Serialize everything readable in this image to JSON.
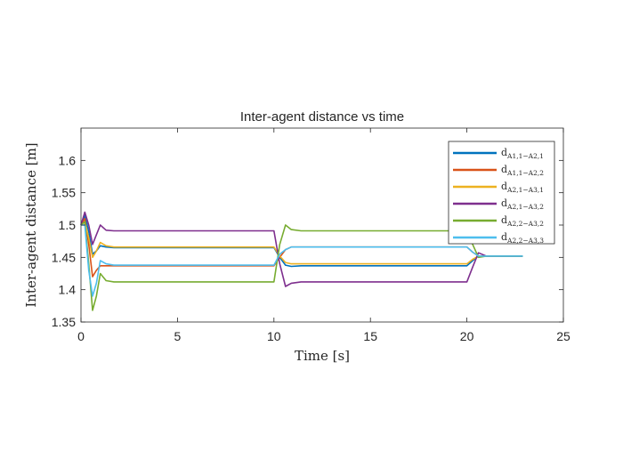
{
  "chart_data": {
    "type": "line",
    "title": "Inter-agent distance vs time",
    "xlabel": "Time [s]",
    "ylabel": "Inter-agent distance [m]",
    "xlim": [
      0,
      25
    ],
    "ylim": [
      1.35,
      1.65
    ],
    "xticks": [
      0,
      5,
      10,
      15,
      20,
      25
    ],
    "xtick_labels": [
      "0",
      "5",
      "10",
      "15",
      "20",
      "25"
    ],
    "yticks": [
      1.35,
      1.4,
      1.45,
      1.5,
      1.55,
      1.6
    ],
    "ytick_labels": [
      "1.35",
      "1.4",
      "1.45",
      "1.5",
      "1.55",
      "1.6"
    ],
    "grid": false,
    "legend_position": "top-right",
    "series": [
      {
        "name": "d_{A_{1,1}-A_{2,1}}",
        "legend_main": "d",
        "legend_sub": "A1,1−A2,1",
        "color": "#0072BD",
        "x": [
          0,
          0.2,
          0.4,
          0.6,
          0.8,
          1.0,
          1.3,
          1.7,
          10.0,
          10.3,
          10.6,
          10.9,
          11.4,
          20.0,
          20.3,
          20.6,
          21.0,
          22.9
        ],
        "y": [
          1.5,
          1.515,
          1.49,
          1.455,
          1.46,
          1.468,
          1.466,
          1.465,
          1.465,
          1.45,
          1.438,
          1.436,
          1.437,
          1.437,
          1.445,
          1.452,
          1.452,
          1.452
        ]
      },
      {
        "name": "d_{A_{1,1}-A_{2,2}}",
        "legend_main": "d",
        "legend_sub": "A1,1−A2,2",
        "color": "#D95319",
        "x": [
          0,
          0.2,
          0.4,
          0.6,
          0.8,
          1.0,
          1.3,
          1.7,
          10.0,
          10.3,
          10.6,
          10.9,
          11.4,
          20.0,
          20.3,
          20.6,
          21.0,
          22.9
        ],
        "y": [
          1.5,
          1.51,
          1.47,
          1.42,
          1.43,
          1.437,
          1.437,
          1.437,
          1.437,
          1.45,
          1.462,
          1.466,
          1.466,
          1.466,
          1.458,
          1.452,
          1.452,
          1.452
        ]
      },
      {
        "name": "d_{A_{2,1}-A_{3,1}}",
        "legend_main": "d",
        "legend_sub": "A2,1−A3,1",
        "color": "#EDB120",
        "x": [
          0,
          0.2,
          0.4,
          0.6,
          0.8,
          1.0,
          1.3,
          1.7,
          10.0,
          10.3,
          10.6,
          10.9,
          11.4,
          20.0,
          20.3,
          20.6,
          21.0,
          22.9
        ],
        "y": [
          1.5,
          1.505,
          1.48,
          1.45,
          1.46,
          1.473,
          1.468,
          1.466,
          1.466,
          1.452,
          1.442,
          1.44,
          1.44,
          1.44,
          1.447,
          1.452,
          1.452,
          1.452
        ]
      },
      {
        "name": "d_{A_{2,1}-A_{3,2}}",
        "legend_main": "d",
        "legend_sub": "A2,1−A3,2",
        "color": "#7E2F8E",
        "x": [
          0,
          0.2,
          0.4,
          0.6,
          0.8,
          1.0,
          1.3,
          1.7,
          10.0,
          10.3,
          10.6,
          10.9,
          11.4,
          20.0,
          20.3,
          20.6,
          21.0,
          22.9
        ],
        "y": [
          1.5,
          1.52,
          1.5,
          1.47,
          1.485,
          1.5,
          1.492,
          1.491,
          1.491,
          1.44,
          1.405,
          1.41,
          1.412,
          1.412,
          1.435,
          1.457,
          1.452,
          1.452
        ]
      },
      {
        "name": "d_{A_{2,2}-A_{3,2}}",
        "legend_main": "d",
        "legend_sub": "A2,2−A3,2",
        "color": "#77AC30",
        "x": [
          0,
          0.2,
          0.4,
          0.6,
          0.8,
          1.0,
          1.3,
          1.7,
          10.0,
          10.3,
          10.6,
          10.9,
          11.4,
          20.0,
          20.3,
          20.6,
          21.0,
          22.9
        ],
        "y": [
          1.5,
          1.505,
          1.44,
          1.368,
          1.39,
          1.425,
          1.414,
          1.412,
          1.412,
          1.47,
          1.5,
          1.493,
          1.491,
          1.491,
          1.47,
          1.45,
          1.452,
          1.452
        ]
      },
      {
        "name": "d_{A_{2,2}-A_{3,3}}",
        "legend_main": "d",
        "legend_sub": "A2,2−A3,3",
        "color": "#4DBEEE",
        "x": [
          0,
          0.2,
          0.4,
          0.6,
          0.8,
          1.0,
          1.3,
          1.7,
          10.0,
          10.3,
          10.6,
          10.9,
          11.4,
          20.0,
          20.3,
          20.6,
          21.0,
          22.9
        ],
        "y": [
          1.5,
          1.5,
          1.43,
          1.39,
          1.41,
          1.445,
          1.44,
          1.438,
          1.438,
          1.455,
          1.462,
          1.466,
          1.466,
          1.466,
          1.458,
          1.452,
          1.452,
          1.452
        ]
      }
    ]
  }
}
